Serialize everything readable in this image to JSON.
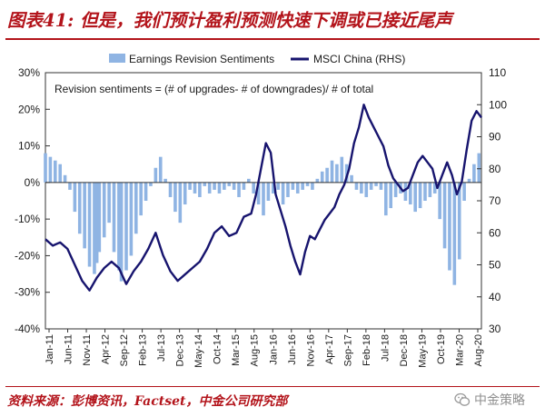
{
  "header": {
    "title": "图表41: 但是，我们预计盈利预测快速下调或已接近尾声"
  },
  "footer": {
    "source": "资料来源：彭博资讯，Factset，中金公司研究部",
    "watermark": "中金策略",
    "watermark_icon": "wechat-icon"
  },
  "colors": {
    "bars": "#8fb4e3",
    "line": "#17146e",
    "title": "#b3141b"
  },
  "chart_data": {
    "type": "bar+line",
    "annotation": "Revision sentiments = (# of upgrades- # of downgrades)/ # of total",
    "legend_position": "top",
    "grid": false,
    "x_tick_labels": [
      "Jan-11",
      "Jun-11",
      "Nov-11",
      "Apr-12",
      "Sep-12",
      "Feb-13",
      "Jul-13",
      "Dec-13",
      "May-14",
      "Oct-14",
      "Mar-15",
      "Aug-15",
      "Jan-16",
      "Jun-16",
      "Nov-16",
      "Apr-17",
      "Sep-17",
      "Feb-18",
      "Jul-18",
      "Dec-18",
      "May-19",
      "Oct-19",
      "Mar-20",
      "Aug-20"
    ],
    "y_left": {
      "ticks": [
        "-40%",
        "-30%",
        "-20%",
        "-10%",
        "0%",
        "10%",
        "20%",
        "30%"
      ],
      "ylim": [
        -40,
        30
      ],
      "unit": "%"
    },
    "y_right": {
      "ticks": [
        "30",
        "40",
        "50",
        "60",
        "70",
        "80",
        "90",
        "100",
        "110"
      ],
      "ylim": [
        30,
        110
      ]
    },
    "series": [
      {
        "name": "Earnings Revision Sentiments",
        "type": "bar",
        "axis": "left",
        "points": [
          [
            0,
            8
          ],
          [
            2,
            7
          ],
          [
            4,
            6
          ],
          [
            6,
            5
          ],
          [
            8,
            2
          ],
          [
            10,
            -2
          ],
          [
            12,
            -8
          ],
          [
            14,
            -14
          ],
          [
            16,
            -18
          ],
          [
            18,
            -23
          ],
          [
            20,
            -25
          ],
          [
            21,
            -22
          ],
          [
            22,
            -19
          ],
          [
            24,
            -15
          ],
          [
            26,
            -11
          ],
          [
            28,
            -19
          ],
          [
            30,
            -24
          ],
          [
            31,
            -27
          ],
          [
            33,
            -24
          ],
          [
            35,
            -20
          ],
          [
            37,
            -14
          ],
          [
            39,
            -9
          ],
          [
            41,
            -5
          ],
          [
            43,
            -1
          ],
          [
            45,
            4
          ],
          [
            47,
            7
          ],
          [
            49,
            1
          ],
          [
            51,
            -4
          ],
          [
            53,
            -8
          ],
          [
            55,
            -11
          ],
          [
            57,
            -6
          ],
          [
            59,
            -2
          ],
          [
            61,
            -3
          ],
          [
            63,
            -4
          ],
          [
            65,
            -1
          ],
          [
            67,
            -3
          ],
          [
            69,
            -2
          ],
          [
            71,
            -3
          ],
          [
            73,
            -2
          ],
          [
            75,
            -1
          ],
          [
            77,
            -2
          ],
          [
            79,
            -4
          ],
          [
            81,
            -2
          ],
          [
            83,
            1
          ],
          [
            85,
            -3
          ],
          [
            87,
            -6
          ],
          [
            89,
            -9
          ],
          [
            91,
            -5
          ],
          [
            93,
            -3
          ],
          [
            95,
            -2
          ],
          [
            97,
            -6
          ],
          [
            99,
            -4
          ],
          [
            101,
            -2
          ],
          [
            103,
            -3
          ],
          [
            105,
            -2
          ],
          [
            107,
            -1
          ],
          [
            109,
            -2
          ],
          [
            111,
            1
          ],
          [
            113,
            3
          ],
          [
            115,
            4
          ],
          [
            117,
            6
          ],
          [
            119,
            5
          ],
          [
            121,
            7
          ],
          [
            123,
            5
          ],
          [
            125,
            2
          ],
          [
            127,
            -2
          ],
          [
            129,
            -3
          ],
          [
            131,
            -4
          ],
          [
            133,
            -2
          ],
          [
            135,
            -1
          ],
          [
            137,
            -2
          ],
          [
            139,
            -9
          ],
          [
            141,
            -7
          ],
          [
            143,
            -4
          ],
          [
            145,
            -3
          ],
          [
            147,
            -5
          ],
          [
            149,
            -6
          ],
          [
            151,
            -8
          ],
          [
            153,
            -7
          ],
          [
            155,
            -5
          ],
          [
            157,
            -4
          ],
          [
            159,
            -3
          ],
          [
            161,
            -10
          ],
          [
            163,
            -18
          ],
          [
            165,
            -24
          ],
          [
            167,
            -28
          ],
          [
            169,
            -21
          ],
          [
            171,
            -5
          ],
          [
            173,
            1
          ],
          [
            175,
            5
          ],
          [
            177,
            8
          ]
        ]
      },
      {
        "name": "MSCI China (RHS)",
        "type": "line",
        "axis": "right",
        "points": [
          [
            0,
            58
          ],
          [
            3,
            56
          ],
          [
            6,
            57
          ],
          [
            9,
            55
          ],
          [
            12,
            50
          ],
          [
            15,
            45
          ],
          [
            18,
            42
          ],
          [
            21,
            46
          ],
          [
            24,
            49
          ],
          [
            27,
            51
          ],
          [
            30,
            49
          ],
          [
            33,
            44
          ],
          [
            36,
            48
          ],
          [
            39,
            51
          ],
          [
            42,
            55
          ],
          [
            45,
            60
          ],
          [
            48,
            53
          ],
          [
            51,
            48
          ],
          [
            54,
            45
          ],
          [
            57,
            47
          ],
          [
            60,
            49
          ],
          [
            63,
            51
          ],
          [
            66,
            55
          ],
          [
            69,
            60
          ],
          [
            72,
            62
          ],
          [
            75,
            59
          ],
          [
            78,
            60
          ],
          [
            81,
            65
          ],
          [
            84,
            66
          ],
          [
            86,
            72
          ],
          [
            88,
            80
          ],
          [
            90,
            88
          ],
          [
            92,
            85
          ],
          [
            94,
            72
          ],
          [
            96,
            67
          ],
          [
            98,
            62
          ],
          [
            100,
            56
          ],
          [
            102,
            51
          ],
          [
            104,
            47
          ],
          [
            106,
            54
          ],
          [
            108,
            59
          ],
          [
            110,
            58
          ],
          [
            112,
            61
          ],
          [
            114,
            64
          ],
          [
            116,
            66
          ],
          [
            118,
            68
          ],
          [
            120,
            72
          ],
          [
            122,
            75
          ],
          [
            124,
            80
          ],
          [
            126,
            88
          ],
          [
            128,
            93
          ],
          [
            130,
            100
          ],
          [
            132,
            96
          ],
          [
            134,
            93
          ],
          [
            136,
            90
          ],
          [
            138,
            87
          ],
          [
            140,
            81
          ],
          [
            142,
            77
          ],
          [
            144,
            75
          ],
          [
            146,
            73
          ],
          [
            148,
            74
          ],
          [
            150,
            78
          ],
          [
            152,
            82
          ],
          [
            154,
            84
          ],
          [
            156,
            82
          ],
          [
            158,
            80
          ],
          [
            160,
            74
          ],
          [
            162,
            78
          ],
          [
            164,
            82
          ],
          [
            166,
            78
          ],
          [
            168,
            72
          ],
          [
            170,
            76
          ],
          [
            172,
            86
          ],
          [
            174,
            95
          ],
          [
            176,
            98
          ],
          [
            178,
            96
          ]
        ]
      }
    ]
  }
}
